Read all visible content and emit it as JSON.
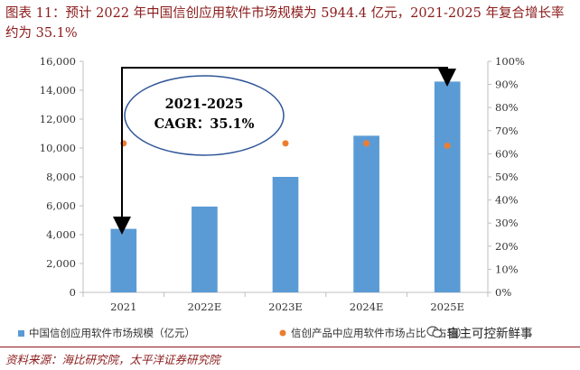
{
  "figure_title": "图表 11：预计 2022 年中国信创应用软件市场规模为 5944.4 亿元，2021-2025 年复合增长率约为 35.1%",
  "annotation": {
    "line1": "2021-2025",
    "line2": "CAGR：35.1%"
  },
  "source": "资料来源：海比研究院，太平洋证券研究院",
  "watermark": "自主可控新鲜事",
  "colors": {
    "bar": "#5b9bd5",
    "point": "#ed7d31",
    "title": "#8b1a1a"
  },
  "chart_data": {
    "type": "bar",
    "categories": [
      "2021",
      "2022E",
      "2023E",
      "2024E",
      "2025E"
    ],
    "series": [
      {
        "name": "中国信创应用软件市场规模（亿元）",
        "type": "bar",
        "axis": "left",
        "values": [
          4400,
          5944.4,
          8000,
          10850,
          14600
        ]
      },
      {
        "name": "信创产品中应用软件市场占比（右轴）",
        "type": "scatter",
        "axis": "right",
        "values": [
          64.5,
          64.5,
          64.5,
          64.5,
          63.5
        ]
      }
    ],
    "ylim": [
      0,
      16000
    ],
    "yticks": [
      "0",
      "2,000",
      "4,000",
      "6,000",
      "8,000",
      "10,000",
      "12,000",
      "14,000",
      "16,000"
    ],
    "y2lim": [
      0,
      100
    ],
    "y2ticks": [
      "0%",
      "10%",
      "20%",
      "30%",
      "40%",
      "50%",
      "60%",
      "70%",
      "80%",
      "90%",
      "100%"
    ],
    "legend_position": "bottom",
    "grid": false
  }
}
